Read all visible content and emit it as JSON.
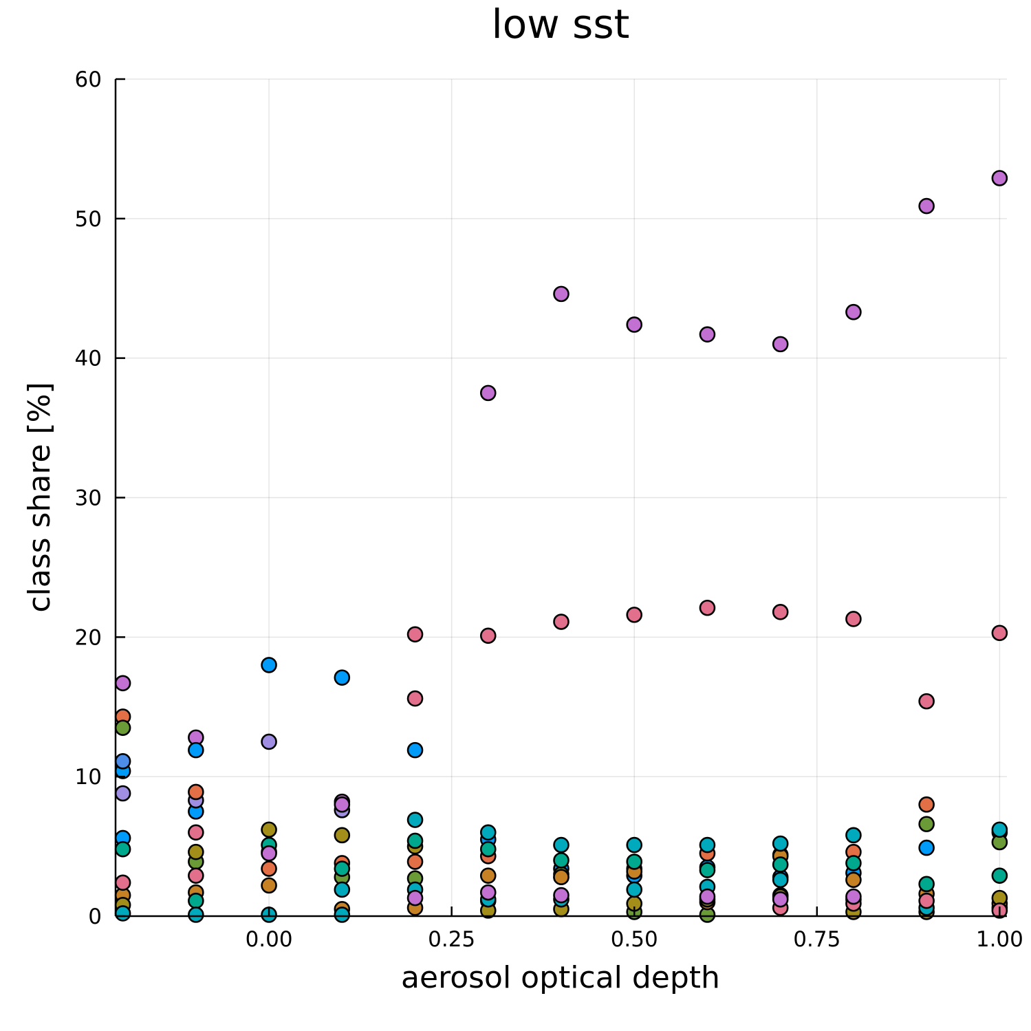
{
  "chart_data": {
    "type": "scatter",
    "title": "low sst",
    "xlabel": "aerosol optical depth",
    "ylabel": "class share [%]",
    "xlim": [
      -0.21,
      1.01
    ],
    "ylim": [
      0,
      60
    ],
    "xticks": [
      0.0,
      0.25,
      0.5,
      0.75,
      1.0
    ],
    "xtick_labels": [
      "0.00",
      "0.25",
      "0.50",
      "0.75",
      "1.00"
    ],
    "yticks": [
      0,
      10,
      20,
      30,
      40,
      50,
      60
    ],
    "ytick_labels": [
      "0",
      "10",
      "20",
      "30",
      "40",
      "50",
      "60"
    ],
    "grid": true,
    "legend": "none",
    "series": [
      {
        "color": "#c271d2",
        "x": [
          -0.2,
          -0.1,
          0.1,
          0.3,
          0.4,
          0.5,
          0.6,
          0.7,
          0.8,
          0.9,
          1.0
        ],
        "y": [
          16.7,
          12.8,
          8.2,
          37.5,
          44.6,
          42.4,
          41.7,
          41.0,
          43.3,
          50.9,
          52.9
        ]
      },
      {
        "color": "#e26f8c",
        "x": [
          0.2,
          0.2,
          0.3,
          0.4,
          0.5,
          0.6,
          0.7,
          0.8,
          0.9,
          1.0,
          -0.1
        ],
        "y": [
          20.2,
          15.6,
          20.1,
          21.1,
          21.6,
          22.1,
          21.8,
          21.3,
          15.4,
          20.3,
          6.0
        ]
      },
      {
        "color": "#009af9",
        "x": [
          -0.2,
          -0.1,
          0.0,
          0.1,
          0.2,
          0.3,
          0.4,
          0.5,
          0.6,
          0.7,
          0.8,
          0.9,
          1.0,
          -0.1,
          -0.2
        ],
        "y": [
          10.4,
          11.9,
          18.0,
          17.1,
          11.9,
          5.5,
          3.4,
          2.9,
          3.5,
          2.8,
          3.1,
          4.9,
          6.0,
          7.5,
          5.6
        ]
      },
      {
        "color": "#9f8ee1",
        "x": [
          -0.2,
          0.0,
          0.1,
          -0.1
        ],
        "y": [
          8.8,
          12.5,
          7.6,
          8.3
        ]
      },
      {
        "color": "#4e8de7",
        "x": [
          -0.2
        ],
        "y": [
          11.1
        ]
      },
      {
        "color": "#e36f47",
        "x": [
          -0.2,
          -0.1,
          0.0,
          0.1,
          0.2,
          0.3,
          0.4,
          0.5,
          0.6,
          0.7,
          0.8,
          0.9,
          1.0
        ],
        "y": [
          14.3,
          8.9,
          3.4,
          3.8,
          3.9,
          4.3,
          2.8,
          3.4,
          4.5,
          4.4,
          4.6,
          8.0,
          0.6
        ]
      },
      {
        "color": "#6b9b36",
        "x": [
          -0.2,
          -0.1,
          0.0,
          0.1,
          0.2,
          0.3,
          0.4,
          0.5,
          0.6,
          0.7,
          0.8,
          0.9,
          1.0
        ],
        "y": [
          13.5,
          3.9,
          4.6,
          2.8,
          2.7,
          1.1,
          3.0,
          0.3,
          0.1,
          1.5,
          1.2,
          6.6,
          5.3
        ]
      },
      {
        "color": "#c68125",
        "x": [
          -0.2,
          -0.1,
          0.0,
          0.1,
          0.2,
          0.3,
          0.4,
          0.5,
          0.6,
          0.7,
          0.8,
          0.9,
          1.0
        ],
        "y": [
          1.5,
          1.7,
          2.2,
          0.5,
          0.6,
          2.9,
          2.8,
          3.2,
          1.0,
          4.3,
          2.6,
          1.6,
          0.9
        ]
      },
      {
        "color": "#a38e1a",
        "x": [
          -0.2,
          -0.1,
          0.0,
          0.1,
          0.2,
          0.3,
          0.4,
          0.5,
          0.6,
          0.7,
          0.8,
          0.9,
          1.0
        ],
        "y": [
          0.8,
          4.6,
          6.2,
          5.8,
          5.0,
          0.4,
          0.5,
          0.9,
          1.2,
          1.4,
          0.3,
          0.3,
          1.3
        ]
      },
      {
        "color": "#00a98d",
        "x": [
          -0.2,
          -0.1,
          0.0,
          0.1,
          0.2,
          0.3,
          0.4,
          0.5,
          0.6,
          0.7,
          0.8,
          0.9,
          1.0
        ],
        "y": [
          4.8,
          1.1,
          5.1,
          3.4,
          5.4,
          4.8,
          4.0,
          3.9,
          3.3,
          3.7,
          3.8,
          2.3,
          2.9
        ]
      },
      {
        "color": "#00a9bc",
        "x": [
          -0.2,
          -0.1,
          0.0,
          0.1,
          0.2,
          0.3,
          0.4,
          0.5,
          0.6,
          0.7,
          0.8,
          0.9,
          1.0
        ],
        "y": [
          0.2,
          0.1,
          0.1,
          1.9,
          1.9,
          6.0,
          5.1,
          5.1,
          5.1,
          5.2,
          5.8,
          0.6,
          6.2
        ]
      },
      {
        "color": "#00a9bc",
        "x": [
          0.1,
          0.3,
          0.4,
          0.5,
          0.6,
          0.7,
          0.2
        ],
        "y": [
          0.1,
          1.2,
          1.2,
          1.9,
          2.1,
          2.6,
          6.9
        ]
      },
      {
        "color": "#e26f8c",
        "x": [
          -0.2,
          -0.1,
          0.7,
          0.8,
          0.9,
          1.0
        ],
        "y": [
          2.4,
          2.9,
          0.6,
          0.9,
          1.1,
          0.4
        ]
      },
      {
        "color": "#c271d2",
        "x": [
          0.0,
          0.1,
          0.2,
          0.3,
          0.4,
          0.6,
          0.7,
          0.8
        ],
        "y": [
          4.5,
          8.0,
          1.3,
          1.7,
          1.5,
          1.4,
          1.2,
          1.4
        ]
      }
    ]
  }
}
